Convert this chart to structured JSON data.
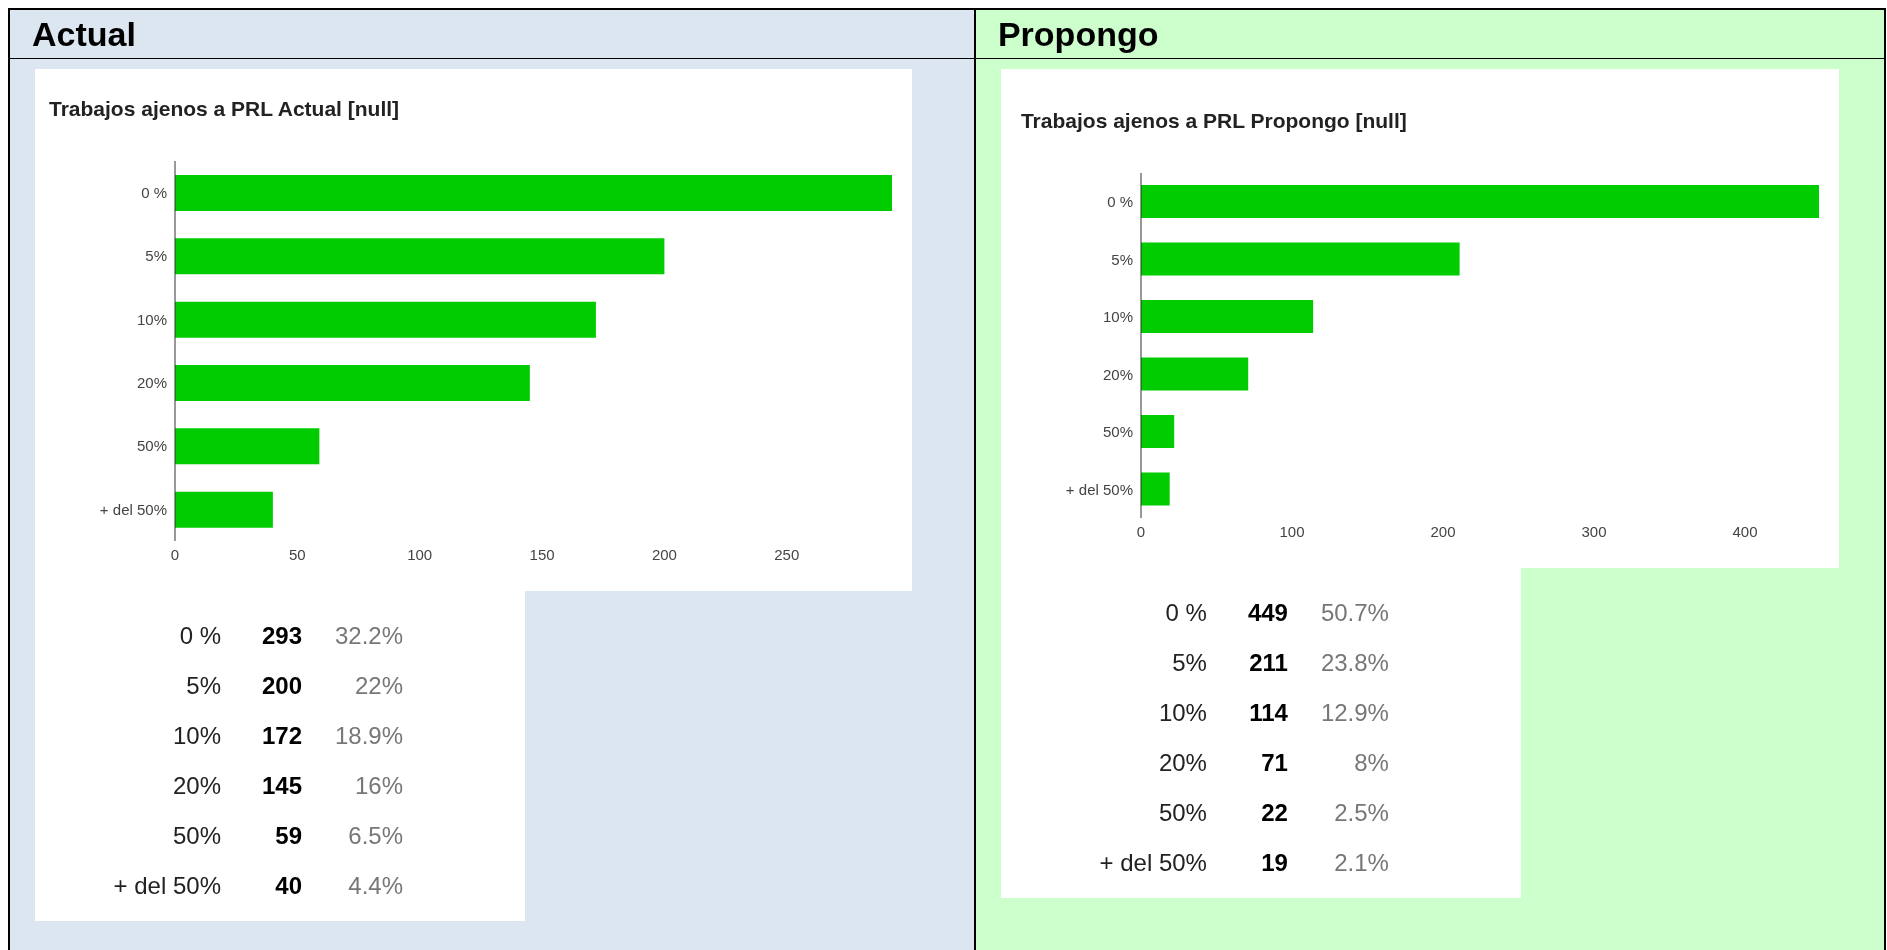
{
  "chart_data": [
    {
      "type": "bar",
      "orientation": "horizontal",
      "subtitle": "Actual",
      "title": "Trabajos ajenos a PRL Actual [null]",
      "categories": [
        "0 %",
        "5%",
        "10%",
        "20%",
        "50%",
        "+ del 50%"
      ],
      "values": [
        293,
        200,
        172,
        145,
        59,
        40
      ],
      "color": "#00cc00",
      "xlim": [
        0,
        293
      ],
      "xticks": [
        0,
        50,
        100,
        150,
        200,
        250
      ]
    },
    {
      "type": "other",
      "annotations": [
        "0 %",
        "293",
        "32.2%",
        "5%",
        "200",
        "22%",
        "10%",
        "172",
        "18.9%",
        "20%",
        "145",
        "16%",
        "50%",
        "59",
        "6.5%",
        "+ del 50%",
        "40",
        "4.4%"
      ]
    },
    {
      "type": "bar",
      "orientation": "horizontal",
      "subtitle": "Propongo",
      "title": "Trabajos ajenos a PRL Propongo [null]",
      "categories": [
        "0 %",
        "5%",
        "10%",
        "20%",
        "50%",
        "+ del 50%"
      ],
      "values": [
        449,
        211,
        114,
        71,
        22,
        19
      ],
      "color": "#00cc00",
      "xlim": [
        0,
        449
      ],
      "xticks": [
        0,
        100,
        200,
        300,
        400
      ]
    },
    {
      "type": "other",
      "annotations": [
        "0 %",
        "449",
        "50.7%",
        "5%",
        "211",
        "23.8%",
        "10%",
        "114",
        "12.9%",
        "20%",
        "71",
        "8%",
        "50%",
        "22",
        "2.5%",
        "+ del 50%",
        "19",
        "2.1%"
      ]
    }
  ]
}
